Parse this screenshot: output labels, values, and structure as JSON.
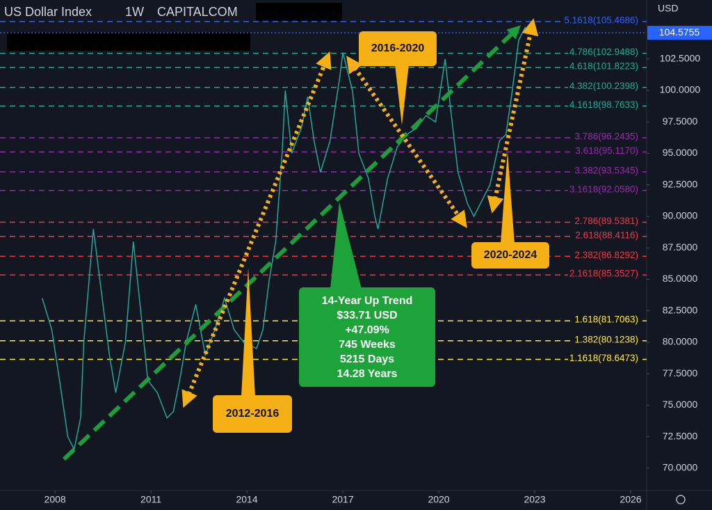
{
  "chart_data": {
    "type": "line",
    "header": {
      "symbol": "US Dollar Index",
      "interval": "1W",
      "source": "CAPITALCOM"
    },
    "currency": "USD",
    "x": [
      2007.6,
      2007.9,
      2008.2,
      2008.4,
      2008.6,
      2008.8,
      2008.9,
      2009.1,
      2009.2,
      2009.5,
      2009.7,
      2009.9,
      2010.2,
      2010.45,
      2010.7,
      2010.9,
      2011.2,
      2011.5,
      2011.7,
      2011.9,
      2012.1,
      2012.4,
      2012.7,
      2013.0,
      2013.3,
      2013.6,
      2013.9,
      2014.3,
      2014.5,
      2014.7,
      2014.9,
      2015.1,
      2015.2,
      2015.4,
      2015.7,
      2015.9,
      2016.1,
      2016.3,
      2016.6,
      2016.9,
      2017.0,
      2017.3,
      2017.5,
      2017.8,
      2018.0,
      2018.1,
      2018.4,
      2018.7,
      2019.0,
      2019.3,
      2019.6,
      2019.9,
      2020.2,
      2020.35,
      2020.6,
      2020.9,
      2021.1,
      2021.4,
      2021.6,
      2021.9,
      2022.1,
      2022.3,
      2022.5,
      2022.7,
      2022.9
    ],
    "series": [
      {
        "name": "US Dollar Index",
        "color": "#26a69a",
        "values": [
          83.5,
          81,
          76,
          72.5,
          71.5,
          74,
          80,
          86,
          89,
          83,
          79,
          76,
          80,
          88,
          82,
          77,
          76,
          74,
          74.5,
          77,
          80,
          83,
          79,
          81,
          83.5,
          81,
          80,
          79.5,
          81,
          85,
          88,
          95,
          100,
          95,
          97,
          99.5,
          96,
          93.5,
          96,
          101,
          103,
          100,
          95,
          93,
          90,
          89,
          93,
          95.5,
          96.5,
          97,
          98,
          97.5,
          102.5,
          99,
          93.5,
          91,
          90,
          91.5,
          92.5,
          96,
          96.5,
          100,
          104,
          105,
          104.5
        ]
      }
    ],
    "last_price": 104.5755,
    "xlim": [
      2006.28,
      2026.5
    ],
    "xticks": [
      2008,
      2011,
      2014,
      2017,
      2020,
      2023,
      2026
    ],
    "ylim": [
      68.23,
      107.18
    ],
    "yticks": [
      {
        "value": 70,
        "label": "70.0000"
      },
      {
        "value": 72.5,
        "label": "72.5000"
      },
      {
        "value": 75,
        "label": "75.0000"
      },
      {
        "value": 77.5,
        "label": "77.5000"
      },
      {
        "value": 80,
        "label": "80.0000"
      },
      {
        "value": 82.5,
        "label": "82.5000"
      },
      {
        "value": 85,
        "label": "85.0000"
      },
      {
        "value": 87.5,
        "label": "87.5000"
      },
      {
        "value": 90,
        "label": "90.0000"
      },
      {
        "value": 92.5,
        "label": "92.5000"
      },
      {
        "value": 95,
        "label": "95.0000"
      },
      {
        "value": 97.5,
        "label": "97.5000"
      },
      {
        "value": 100,
        "label": "100.0000"
      },
      {
        "value": 102.5,
        "label": "102.5000"
      }
    ],
    "fib_levels": [
      {
        "label": "5.1618(105.4686)",
        "value": 105.4686,
        "color": "#2962ff"
      },
      {
        "label": "4.786(102.9488)",
        "value": 102.9488,
        "color": "#22ab94"
      },
      {
        "label": "4.618(101.8223)",
        "value": 101.8223,
        "color": "#22ab94"
      },
      {
        "label": "4.382(100.2398)",
        "value": 100.2398,
        "color": "#22ab94"
      },
      {
        "label": "4.1618(98.7633)",
        "value": 98.7633,
        "color": "#22ab94"
      },
      {
        "label": "3.786(96.2435)",
        "value": 96.2435,
        "color": "#9c27b0"
      },
      {
        "label": "3.618(95.1170)",
        "value": 95.117,
        "color": "#9c27b0"
      },
      {
        "label": "3.382(93.5345)",
        "value": 93.5345,
        "color": "#9c27b0"
      },
      {
        "label": "3.1618(92.0580)",
        "value": 92.058,
        "color": "#9c27b0"
      },
      {
        "label": "2.786(89.5381)",
        "value": 89.5381,
        "color": "#f23645"
      },
      {
        "label": "2.618(88.4116)",
        "value": 88.4116,
        "color": "#f23645"
      },
      {
        "label": "2.382(86.8292)",
        "value": 86.8292,
        "color": "#f23645"
      },
      {
        "label": "2.1618(85.3527)",
        "value": 85.3527,
        "color": "#f23645"
      },
      {
        "label": "1.618(81.7063)",
        "value": 81.7063,
        "color": "#ffeb3b"
      },
      {
        "label": "1.382(80.1238)",
        "value": 80.1238,
        "color": "#ffeb3b"
      },
      {
        "label": "1.1618(78.6473)",
        "value": 78.6473,
        "color": "#ffeb3b"
      }
    ],
    "annotations": [
      "2016-2020",
      "2012-2016",
      "2020-2024"
    ],
    "trend_box": [
      "14-Year Up Trend",
      "$33.71 USD",
      "+47.09%",
      "745 Weeks",
      "5215 Days",
      "14.28 Years"
    ]
  }
}
